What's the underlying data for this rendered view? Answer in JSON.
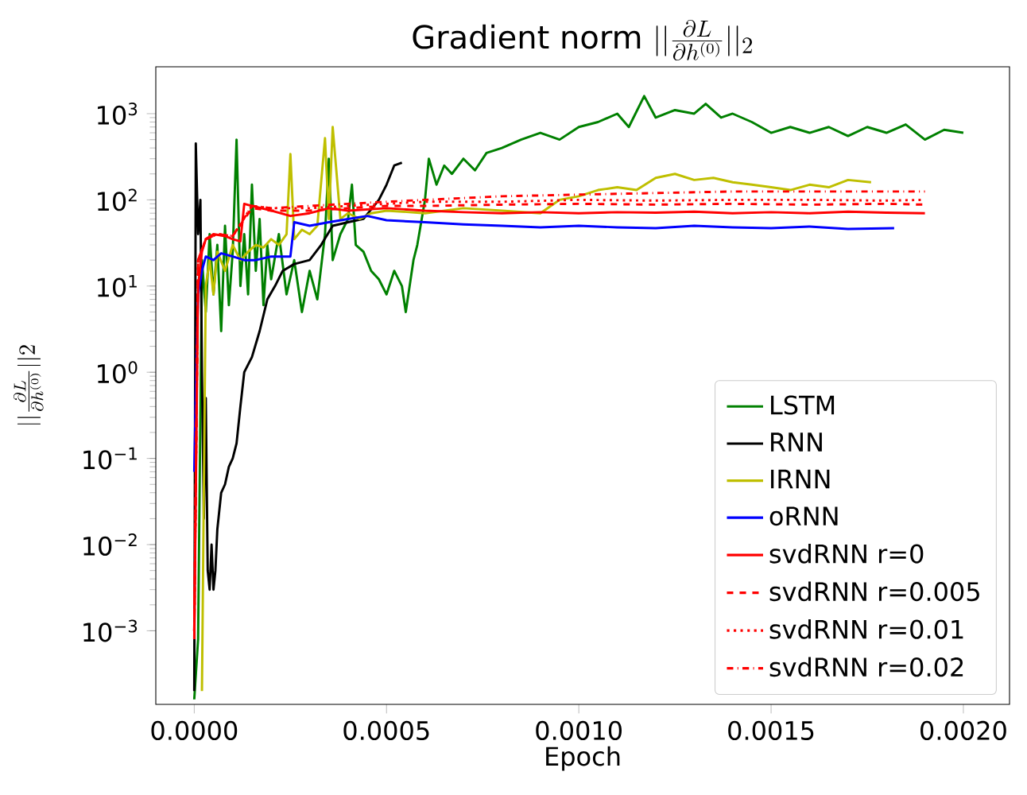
{
  "chart_data": {
    "type": "line",
    "title": "\\mbox{Gradient norm }||\\frac{\\partial L}{\\partial h^{(0)}}||_2",
    "xlabel": "Epoch",
    "ylabel": "||\\frac{\\partial L}{\\partial h^{(0)}}||2",
    "log": "y",
    "legend": "bottom right",
    "marker": "none",
    "xlim": [
      -0.0001,
      0.00212
    ],
    "ylim": [
      0.00014,
      3500
    ],
    "xticks": [
      {
        "value": 0,
        "label": "0.0000"
      },
      {
        "value": 0.0005,
        "label": "0.0005"
      },
      {
        "value": 0.001,
        "label": "0.0010"
      },
      {
        "value": 0.0015,
        "label": "0.0015"
      },
      {
        "value": 0.002,
        "label": "0.0020"
      }
    ],
    "yticks": [
      {
        "value": 0.001,
        "label": "10$^{−3}$"
      },
      {
        "value": 0.01,
        "label": "10$^{−2}$"
      },
      {
        "value": 0.1,
        "label": "10$^{−1}$"
      },
      {
        "value": 1,
        "label": "10$^{0}$"
      },
      {
        "value": 10,
        "label": "10$^{1}$"
      },
      {
        "value": 100,
        "label": "10$^{2}$"
      },
      {
        "value": 1000,
        "label": "10$^{3}$"
      }
    ],
    "series": [
      {
        "name": "LSTM",
        "color": "#008000",
        "line_style": "solid",
        "x": [
          0,
          1e-05,
          2e-05,
          3e-05,
          4e-05,
          5e-05,
          6e-05,
          7e-05,
          8e-05,
          9e-05,
          0.0001,
          0.00011,
          0.00012,
          0.00013,
          0.00014,
          0.00015,
          0.00016,
          0.00017,
          0.00018,
          0.00019,
          0.0002,
          0.00022,
          0.00024,
          0.00026,
          0.00028,
          0.0003,
          0.00032,
          0.00034,
          0.00035,
          0.00036,
          0.00038,
          0.0004,
          0.00041,
          0.00042,
          0.00044,
          0.00046,
          0.00048,
          0.0005,
          0.00052,
          0.00054,
          0.00055,
          0.00057,
          0.00058,
          0.0006,
          0.00061,
          0.00063,
          0.00065,
          0.00067,
          0.0007,
          0.00073,
          0.00076,
          0.0008,
          0.00085,
          0.0009,
          0.00095,
          0.001,
          0.00105,
          0.0011,
          0.00113,
          0.00117,
          0.0012,
          0.00125,
          0.0013,
          0.00133,
          0.00137,
          0.0014,
          0.00145,
          0.0015,
          0.00155,
          0.0016,
          0.00165,
          0.0017,
          0.00175,
          0.0018,
          0.00185,
          0.0019,
          0.00195,
          0.002
        ],
        "values": [
          0.00016,
          0.0008,
          20,
          5,
          40,
          8,
          30,
          3,
          50,
          6,
          25,
          500,
          10,
          40,
          8,
          150,
          15,
          60,
          6,
          30,
          12,
          40,
          8,
          20,
          5,
          15,
          7,
          40,
          300,
          20,
          40,
          60,
          150,
          30,
          25,
          15,
          12,
          8,
          15,
          10,
          5,
          20,
          30,
          100,
          300,
          150,
          250,
          200,
          300,
          220,
          350,
          400,
          500,
          600,
          500,
          700,
          800,
          1000,
          700,
          1600,
          900,
          1100,
          1000,
          1300,
          900,
          1000,
          800,
          600,
          700,
          600,
          700,
          550,
          700,
          600,
          750,
          500,
          650,
          600
        ]
      },
      {
        "name": "RNN",
        "color": "#000000",
        "line_style": "solid",
        "x": [
          0,
          4e-06,
          1e-05,
          1.6e-05,
          2e-05,
          2.5e-05,
          3e-05,
          3.5e-05,
          4e-05,
          4.5e-05,
          5e-05,
          5.5e-05,
          6e-05,
          7e-05,
          8e-05,
          9e-05,
          0.0001,
          0.00011,
          0.00012,
          0.00013,
          0.00015,
          0.00017,
          0.00019,
          0.00021,
          0.00023,
          0.00026,
          0.0003,
          0.00033,
          0.00036,
          0.0004,
          0.00044,
          0.00048,
          0.0005,
          0.00052,
          0.00054
        ],
        "values": [
          0.0002,
          450,
          40,
          100,
          1,
          0.02,
          0.5,
          0.005,
          0.003,
          0.01,
          0.003,
          0.005,
          0.015,
          0.04,
          0.05,
          0.08,
          0.1,
          0.15,
          0.4,
          1,
          1.5,
          3,
          7,
          10,
          15,
          18,
          20,
          30,
          50,
          55,
          60,
          100,
          150,
          250,
          270
        ]
      },
      {
        "name": "IRNN",
        "color": "#bfbf00",
        "line_style": "solid",
        "x": [
          2e-05,
          3e-05,
          4e-05,
          5e-05,
          6e-05,
          8e-05,
          0.0001,
          0.00012,
          0.00014,
          0.00016,
          0.00018,
          0.0002,
          0.00022,
          0.00024,
          0.00025,
          0.00026,
          0.00028,
          0.0003,
          0.00032,
          0.00034,
          0.00035,
          0.00036,
          0.00038,
          0.0004,
          0.00043,
          0.00046,
          0.0005,
          0.0006,
          0.0007,
          0.0008,
          0.0009,
          0.00095,
          0.001,
          0.00105,
          0.0011,
          0.00115,
          0.0012,
          0.00125,
          0.0013,
          0.00135,
          0.0014,
          0.00145,
          0.0015,
          0.00155,
          0.0016,
          0.00165,
          0.0017,
          0.00176
        ],
        "values": [
          0.0002,
          10,
          20,
          8,
          25,
          15,
          30,
          20,
          25,
          30,
          28,
          35,
          30,
          40,
          340,
          35,
          45,
          40,
          50,
          520,
          60,
          700,
          60,
          70,
          60,
          70,
          75,
          70,
          80,
          75,
          70,
          100,
          110,
          130,
          140,
          130,
          180,
          200,
          170,
          180,
          160,
          150,
          140,
          130,
          150,
          140,
          170,
          160
        ]
      },
      {
        "name": "oRNN",
        "color": "#0000ff",
        "line_style": "solid",
        "x": [
          0,
          5e-06,
          1e-05,
          2e-05,
          3e-05,
          5e-05,
          7e-05,
          0.0001,
          0.00013,
          0.00016,
          0.0002,
          0.00025,
          0.00026,
          0.0003,
          0.00035,
          0.0004,
          0.00045,
          0.0005,
          0.0006,
          0.0007,
          0.0008,
          0.0009,
          0.001,
          0.0011,
          0.0012,
          0.0013,
          0.0014,
          0.0015,
          0.0016,
          0.0017,
          0.00182
        ],
        "values": [
          0.07,
          1,
          8,
          15,
          22,
          20,
          24,
          22,
          20,
          20,
          22,
          22,
          55,
          50,
          55,
          60,
          65,
          58,
          55,
          52,
          50,
          48,
          50,
          48,
          47,
          50,
          48,
          47,
          49,
          46,
          47
        ]
      },
      {
        "name": "svdRNN r=0",
        "color": "#ff0000",
        "line_style": "solid",
        "x": [
          0,
          5e-06,
          1e-05,
          2e-05,
          3e-05,
          5e-05,
          8e-05,
          0.0001,
          0.00012,
          0.00013,
          0.00015,
          0.0002,
          0.00025,
          0.0003,
          0.00035,
          0.0004,
          0.0005,
          0.0006,
          0.0007,
          0.0008,
          0.0009,
          0.001,
          0.0011,
          0.0012,
          0.0013,
          0.0014,
          0.0015,
          0.0016,
          0.0017,
          0.0018,
          0.0019
        ],
        "values": [
          0.0008,
          0.1,
          10,
          25,
          35,
          40,
          38,
          35,
          33,
          90,
          85,
          75,
          65,
          70,
          80,
          75,
          80,
          75,
          72,
          70,
          72,
          70,
          72,
          71,
          73,
          70,
          72,
          70,
          73,
          71,
          70
        ]
      },
      {
        "name": "svdRNN r=0.005",
        "color": "#ff0000",
        "line_style": "dashed",
        "x": [
          0,
          1e-05,
          3e-05,
          6e-05,
          0.0001,
          0.00015,
          0.0002,
          0.0003,
          0.0004,
          0.0005,
          0.0006,
          0.0008,
          0.001,
          0.0012,
          0.0014,
          0.0016,
          0.0018,
          0.0019
        ],
        "values": [
          0.001,
          20,
          35,
          40,
          38,
          80,
          75,
          75,
          80,
          85,
          85,
          88,
          90,
          88,
          90,
          88,
          90,
          88
        ]
      },
      {
        "name": "svdRNN r=0.01",
        "color": "#ff0000",
        "line_style": "dotted",
        "x": [
          0,
          1e-05,
          3e-05,
          6e-05,
          0.0001,
          0.00015,
          0.0002,
          0.0003,
          0.0004,
          0.0005,
          0.0006,
          0.0008,
          0.001,
          0.0012,
          0.0014,
          0.0016,
          0.0018,
          0.0019
        ],
        "values": [
          0.001,
          20,
          35,
          40,
          38,
          85,
          80,
          80,
          85,
          90,
          95,
          95,
          100,
          98,
          100,
          100,
          98,
          100
        ]
      },
      {
        "name": "svdRNN r=0.02",
        "color": "#ff0000",
        "line_style": "dashdot",
        "x": [
          0,
          1e-05,
          3e-05,
          6e-05,
          0.0001,
          0.00015,
          0.0002,
          0.0003,
          0.0004,
          0.0005,
          0.0006,
          0.0008,
          0.001,
          0.0012,
          0.0014,
          0.0016,
          0.0018,
          0.0019
        ],
        "values": [
          0.001,
          20,
          35,
          40,
          38,
          85,
          80,
          85,
          90,
          95,
          100,
          110,
          115,
          120,
          125,
          125,
          125,
          125
        ]
      }
    ]
  }
}
